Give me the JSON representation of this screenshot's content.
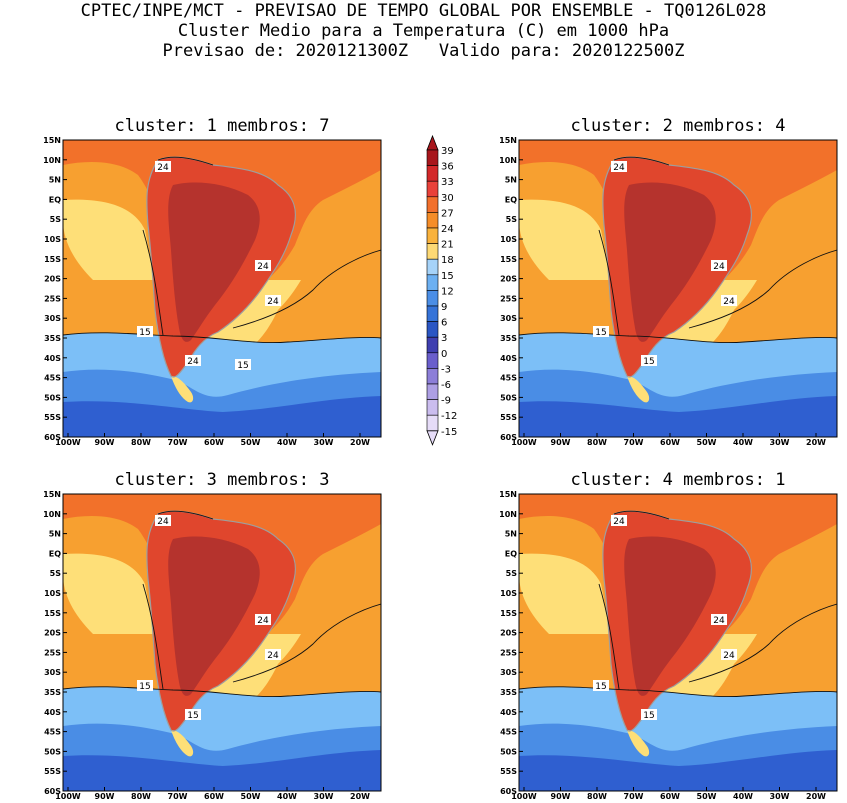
{
  "header": {
    "line1": "CPTEC/INPE/MCT - PREVISAO DE TEMPO GLOBAL POR ENSEMBLE - TQ0126L028",
    "line2": "Cluster Medio para a Temperatura (C) em 1000 hPa",
    "line3": "Previsao de: 2020121300Z   Valido para: 2020122500Z"
  },
  "panels": [
    {
      "title": "cluster: 1  membros: 7",
      "contour_labels": [
        "24",
        "24",
        "24",
        "24",
        "15",
        "15"
      ]
    },
    {
      "title": "cluster: 2  membros: 4",
      "contour_labels": [
        "24",
        "24",
        "24",
        "15",
        "15"
      ]
    },
    {
      "title": "cluster: 3  membros: 3",
      "contour_labels": [
        "24",
        "24",
        "24",
        "15",
        "15"
      ]
    },
    {
      "title": "cluster: 4  membros: 1",
      "contour_labels": [
        "24",
        "24",
        "24",
        "15",
        "15"
      ]
    }
  ],
  "lat_ticks": [
    "15N",
    "10N",
    "5N",
    "EQ",
    "5S",
    "10S",
    "15S",
    "20S",
    "25S",
    "30S",
    "35S",
    "40S",
    "45S",
    "50S",
    "55S",
    "60S"
  ],
  "lon_ticks": [
    "100W",
    "90W",
    "80W",
    "70W",
    "60W",
    "50W",
    "40W",
    "30W",
    "20W"
  ],
  "colorbar": {
    "labels": [
      "39",
      "36",
      "33",
      "30",
      "27",
      "24",
      "21",
      "18",
      "15",
      "12",
      "9",
      "6",
      "3",
      "0",
      "-3",
      "-6",
      "-9",
      "-12",
      "-15"
    ],
    "colors": [
      "#a8161c",
      "#d3282a",
      "#e9413a",
      "#f2702c",
      "#f58d28",
      "#f9b23c",
      "#fdd975",
      "#a6d3f9",
      "#6cb0f2",
      "#4b8ee6",
      "#3573d8",
      "#2a56c4",
      "#3f3fb0",
      "#6a5ecc",
      "#8c7ed8",
      "#ad9fe4",
      "#cbbdef",
      "#e6dcf8"
    ]
  },
  "colors": {
    "continent_core": "#b5332d",
    "continent_hot": "#e0462d",
    "warm": "#f2712a",
    "orange": "#f7a030",
    "yellow": "#fedf78",
    "cool": "#7cbff7",
    "mid_blue": "#4a8de5",
    "deep_blue": "#2f5fd0",
    "coast": "#9e9e9e"
  }
}
